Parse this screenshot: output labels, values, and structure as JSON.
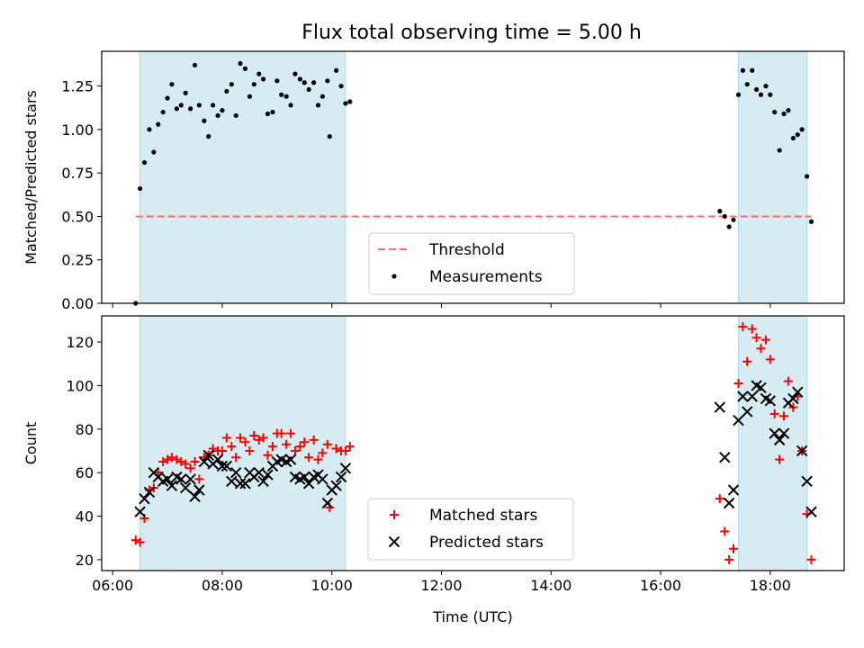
{
  "title": "Flux total observing time = 5.00 h",
  "colors": {
    "threshold": "#ff6b6b",
    "measurement": "#000000",
    "matched": "#ff0000",
    "predicted": "#000000",
    "span_fill": "#add8e6"
  },
  "chart_data": [
    {
      "type": "scatter",
      "panel": "top",
      "title": "Flux total observing time = 5.00 h",
      "xlabel": "",
      "ylabel": "Matched/Predicted stars",
      "xlim": [
        5.8,
        19.35
      ],
      "ylim": [
        0,
        1.45
      ],
      "x_ticks": [
        6,
        8,
        10,
        12,
        14,
        16,
        18
      ],
      "y_ticks": [
        0.0,
        0.25,
        0.5,
        0.75,
        1.0,
        1.25
      ],
      "y_tick_labels": [
        "0.00",
        "0.25",
        "0.50",
        "0.75",
        "1.00",
        "1.25"
      ],
      "shaded_spans": [
        [
          6.5,
          10.25
        ],
        [
          17.42,
          18.67
        ]
      ],
      "threshold": {
        "name": "Threshold",
        "y": 0.5,
        "x_range": [
          6.42,
          18.75
        ]
      },
      "legend": {
        "position": "lower-center",
        "entries": [
          "Threshold",
          "Measurements"
        ]
      },
      "series": [
        {
          "name": "Measurements",
          "marker": "dot",
          "points": [
            [
              6.42,
              0.0
            ],
            [
              6.5,
              0.66
            ],
            [
              6.58,
              0.81
            ],
            [
              6.67,
              1.0
            ],
            [
              6.75,
              0.87
            ],
            [
              6.83,
              1.03
            ],
            [
              6.92,
              1.1
            ],
            [
              7.0,
              1.18
            ],
            [
              7.08,
              1.26
            ],
            [
              7.17,
              1.12
            ],
            [
              7.25,
              1.14
            ],
            [
              7.33,
              1.21
            ],
            [
              7.42,
              1.12
            ],
            [
              7.5,
              1.37
            ],
            [
              7.58,
              1.14
            ],
            [
              7.67,
              1.05
            ],
            [
              7.75,
              0.96
            ],
            [
              7.83,
              1.14
            ],
            [
              7.92,
              1.08
            ],
            [
              8.0,
              1.11
            ],
            [
              8.08,
              1.22
            ],
            [
              8.17,
              1.26
            ],
            [
              8.25,
              1.08
            ],
            [
              8.33,
              1.38
            ],
            [
              8.42,
              1.35
            ],
            [
              8.5,
              1.19
            ],
            [
              8.58,
              1.26
            ],
            [
              8.67,
              1.32
            ],
            [
              8.75,
              1.29
            ],
            [
              8.83,
              1.09
            ],
            [
              8.92,
              1.1
            ],
            [
              9.0,
              1.28
            ],
            [
              9.08,
              1.2
            ],
            [
              9.17,
              1.19
            ],
            [
              9.25,
              1.14
            ],
            [
              9.33,
              1.32
            ],
            [
              9.42,
              1.29
            ],
            [
              9.5,
              1.27
            ],
            [
              9.58,
              1.23
            ],
            [
              9.67,
              1.27
            ],
            [
              9.75,
              1.14
            ],
            [
              9.83,
              1.19
            ],
            [
              9.92,
              1.28
            ],
            [
              9.96,
              0.96
            ],
            [
              10.08,
              1.34
            ],
            [
              10.17,
              1.25
            ],
            [
              10.25,
              1.15
            ],
            [
              10.33,
              1.16
            ],
            [
              17.08,
              0.53
            ],
            [
              17.17,
              0.5
            ],
            [
              17.25,
              0.44
            ],
            [
              17.33,
              0.48
            ],
            [
              17.42,
              1.2
            ],
            [
              17.5,
              1.34
            ],
            [
              17.58,
              1.26
            ],
            [
              17.67,
              1.34
            ],
            [
              17.75,
              1.23
            ],
            [
              17.83,
              1.2
            ],
            [
              17.92,
              1.25
            ],
            [
              18.0,
              1.2
            ],
            [
              18.08,
              1.1
            ],
            [
              18.17,
              0.88
            ],
            [
              18.25,
              1.09
            ],
            [
              18.33,
              1.11
            ],
            [
              18.42,
              0.95
            ],
            [
              18.5,
              0.97
            ],
            [
              18.58,
              1.0
            ],
            [
              18.67,
              0.73
            ],
            [
              18.75,
              0.47
            ]
          ]
        }
      ]
    },
    {
      "type": "scatter",
      "panel": "bottom",
      "title": "",
      "xlabel": "Time (UTC)",
      "ylabel": "Count",
      "xlim": [
        5.8,
        19.35
      ],
      "ylim": [
        15,
        132
      ],
      "x_ticks": [
        6,
        8,
        10,
        12,
        14,
        16,
        18
      ],
      "x_tick_labels": [
        "06:00",
        "08:00",
        "10:00",
        "12:00",
        "14:00",
        "16:00",
        "18:00"
      ],
      "y_ticks": [
        20,
        40,
        60,
        80,
        100,
        120
      ],
      "shaded_spans": [
        [
          6.5,
          10.25
        ],
        [
          17.42,
          18.67
        ]
      ],
      "legend": {
        "position": "lower-center",
        "entries": [
          "Matched stars",
          "Predicted stars"
        ]
      },
      "series": [
        {
          "name": "Matched stars",
          "marker": "plus",
          "points": [
            [
              6.42,
              29
            ],
            [
              6.5,
              28
            ],
            [
              6.58,
              39
            ],
            [
              6.67,
              52
            ],
            [
              6.75,
              53
            ],
            [
              6.83,
              60
            ],
            [
              6.92,
              65
            ],
            [
              7.0,
              66
            ],
            [
              7.08,
              67
            ],
            [
              7.17,
              66
            ],
            [
              7.25,
              65
            ],
            [
              7.33,
              64
            ],
            [
              7.42,
              62
            ],
            [
              7.5,
              65
            ],
            [
              7.58,
              57
            ],
            [
              7.67,
              67
            ],
            [
              7.75,
              68
            ],
            [
              7.83,
              71
            ],
            [
              7.92,
              70
            ],
            [
              8.0,
              70
            ],
            [
              8.08,
              76
            ],
            [
              8.17,
              72
            ],
            [
              8.25,
              67
            ],
            [
              8.33,
              76
            ],
            [
              8.42,
              74
            ],
            [
              8.5,
              70
            ],
            [
              8.58,
              77
            ],
            [
              8.67,
              75
            ],
            [
              8.75,
              76
            ],
            [
              8.83,
              68
            ],
            [
              8.92,
              72
            ],
            [
              9.0,
              78
            ],
            [
              9.08,
              78
            ],
            [
              9.17,
              73
            ],
            [
              9.25,
              78
            ],
            [
              9.33,
              70
            ],
            [
              9.42,
              72
            ],
            [
              9.5,
              74
            ],
            [
              9.58,
              67
            ],
            [
              9.67,
              75
            ],
            [
              9.75,
              66
            ],
            [
              9.83,
              69
            ],
            [
              9.92,
              73
            ],
            [
              9.96,
              44
            ],
            [
              10.08,
              71
            ],
            [
              10.17,
              70
            ],
            [
              10.25,
              70
            ],
            [
              10.33,
              72
            ],
            [
              17.08,
              48
            ],
            [
              17.17,
              33
            ],
            [
              17.25,
              20
            ],
            [
              17.33,
              25
            ],
            [
              17.42,
              101
            ],
            [
              17.5,
              127
            ],
            [
              17.58,
              111
            ],
            [
              17.67,
              126
            ],
            [
              17.75,
              122
            ],
            [
              17.83,
              117
            ],
            [
              17.92,
              121
            ],
            [
              18.0,
              112
            ],
            [
              18.08,
              87
            ],
            [
              18.17,
              66
            ],
            [
              18.25,
              86
            ],
            [
              18.33,
              102
            ],
            [
              18.42,
              90
            ],
            [
              18.5,
              95
            ],
            [
              18.58,
              70
            ],
            [
              18.67,
              41
            ],
            [
              18.75,
              20
            ]
          ]
        },
        {
          "name": "Predicted stars",
          "marker": "x",
          "points": [
            [
              6.5,
              42
            ],
            [
              6.58,
              48
            ],
            [
              6.67,
              51
            ],
            [
              6.75,
              60
            ],
            [
              6.83,
              58
            ],
            [
              6.92,
              56
            ],
            [
              7.0,
              57
            ],
            [
              7.08,
              54
            ],
            [
              7.17,
              58
            ],
            [
              7.25,
              57
            ],
            [
              7.33,
              53
            ],
            [
              7.42,
              57
            ],
            [
              7.5,
              49
            ],
            [
              7.58,
              52
            ],
            [
              7.67,
              65
            ],
            [
              7.75,
              68
            ],
            [
              7.83,
              64
            ],
            [
              7.92,
              66
            ],
            [
              8.0,
              63
            ],
            [
              8.08,
              63
            ],
            [
              8.17,
              56
            ],
            [
              8.25,
              60
            ],
            [
              8.33,
              55
            ],
            [
              8.42,
              55
            ],
            [
              8.5,
              60
            ],
            [
              8.58,
              58
            ],
            [
              8.67,
              60
            ],
            [
              8.75,
              56
            ],
            [
              8.83,
              59
            ],
            [
              8.92,
              63
            ],
            [
              9.0,
              65
            ],
            [
              9.08,
              66
            ],
            [
              9.17,
              65
            ],
            [
              9.25,
              66
            ],
            [
              9.33,
              58
            ],
            [
              9.42,
              57
            ],
            [
              9.5,
              58
            ],
            [
              9.58,
              55
            ],
            [
              9.67,
              58
            ],
            [
              9.75,
              59
            ],
            [
              9.83,
              57
            ],
            [
              9.92,
              46
            ],
            [
              10.0,
              52
            ],
            [
              10.08,
              54
            ],
            [
              10.17,
              58
            ],
            [
              10.25,
              62
            ],
            [
              17.08,
              90
            ],
            [
              17.17,
              67
            ],
            [
              17.25,
              46
            ],
            [
              17.33,
              52
            ],
            [
              17.42,
              84
            ],
            [
              17.5,
              95
            ],
            [
              17.58,
              88
            ],
            [
              17.67,
              95
            ],
            [
              17.75,
              100
            ],
            [
              17.83,
              99
            ],
            [
              17.92,
              94
            ],
            [
              18.0,
              93
            ],
            [
              18.08,
              78
            ],
            [
              18.17,
              75
            ],
            [
              18.25,
              78
            ],
            [
              18.33,
              92
            ],
            [
              18.42,
              94
            ],
            [
              18.5,
              97
            ],
            [
              18.58,
              70
            ],
            [
              18.67,
              56
            ],
            [
              18.75,
              42
            ]
          ]
        }
      ]
    }
  ]
}
